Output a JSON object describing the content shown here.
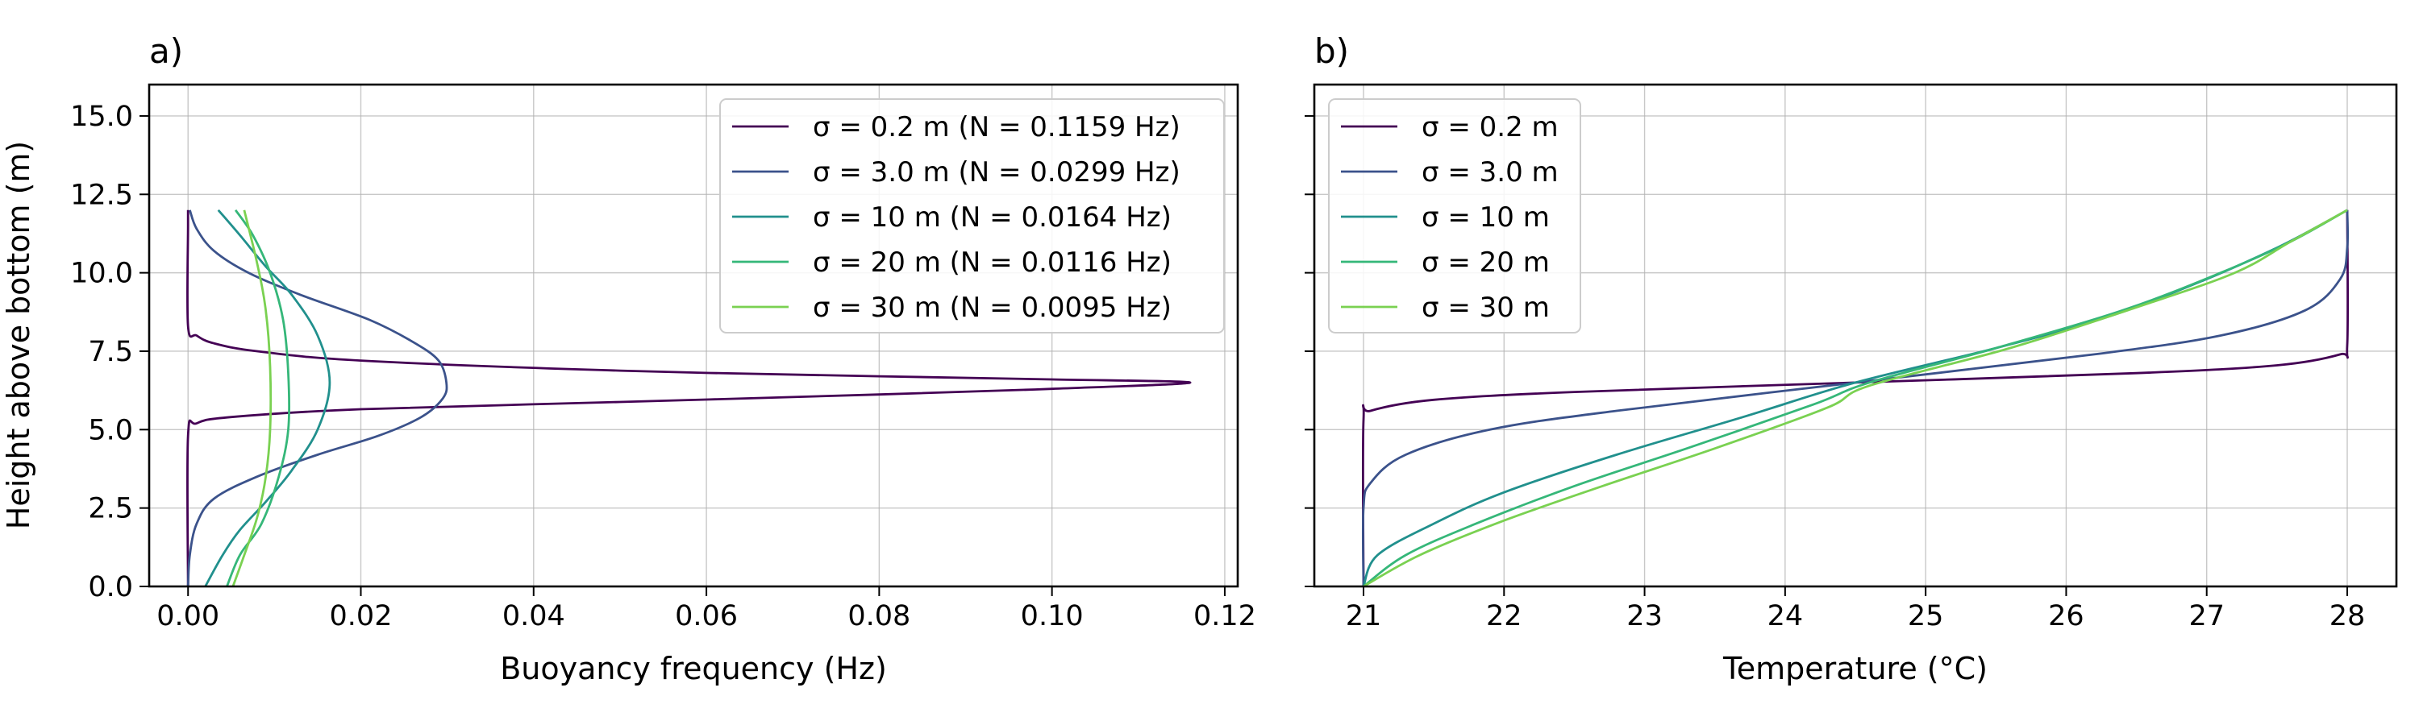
{
  "chart_data": [
    {
      "panel_label": "a)",
      "type": "line",
      "xlabel": "Buoyancy frequency (Hz)",
      "ylabel": "Height above bottom (m)",
      "xlim": [
        -0.0045,
        0.1215
      ],
      "ylim": [
        0,
        16
      ],
      "xticks": [
        0.0,
        0.02,
        0.04,
        0.06,
        0.08,
        0.1,
        0.12
      ],
      "xtick_labels": [
        "0.00",
        "0.02",
        "0.04",
        "0.06",
        "0.08",
        "0.10",
        "0.12"
      ],
      "yticks": [
        0.0,
        2.5,
        5.0,
        7.5,
        10.0,
        12.5,
        15.0
      ],
      "ytick_labels": [
        "0.0",
        "2.5",
        "5.0",
        "7.5",
        "10.0",
        "12.5",
        "15.0"
      ],
      "grid": true,
      "legend_position": "top-right",
      "series": [
        {
          "name": "σ = 0.2 m (N = 0.1159 Hz)",
          "color": "#440154",
          "points": [
            [
              0.0,
              0.0
            ],
            [
              0.0,
              4.8
            ],
            [
              0.001,
              5.2
            ],
            [
              0.005,
              5.4
            ],
            [
              0.02,
              5.65
            ],
            [
              0.05,
              5.88
            ],
            [
              0.08,
              6.12
            ],
            [
              0.1,
              6.3
            ],
            [
              0.116,
              6.5
            ],
            [
              0.1,
              6.6
            ],
            [
              0.08,
              6.7
            ],
            [
              0.05,
              6.88
            ],
            [
              0.02,
              7.2
            ],
            [
              0.008,
              7.5
            ],
            [
              0.003,
              7.75
            ],
            [
              0.001,
              8.0
            ],
            [
              0.0,
              8.3
            ],
            [
              0.0,
              11.5
            ],
            [
              0.0,
              12.0
            ]
          ]
        },
        {
          "name": "σ = 3.0 m (N = 0.0299 Hz)",
          "color": "#3b528b",
          "points": [
            [
              0.0,
              0.0
            ],
            [
              0.0002,
              1.0
            ],
            [
              0.001,
              2.0
            ],
            [
              0.003,
              2.8
            ],
            [
              0.008,
              3.5
            ],
            [
              0.015,
              4.2
            ],
            [
              0.022,
              4.8
            ],
            [
              0.027,
              5.4
            ],
            [
              0.0295,
              6.0
            ],
            [
              0.0299,
              6.5
            ],
            [
              0.029,
              7.2
            ],
            [
              0.026,
              7.8
            ],
            [
              0.021,
              8.5
            ],
            [
              0.013,
              9.3
            ],
            [
              0.007,
              10.0
            ],
            [
              0.003,
              10.7
            ],
            [
              0.001,
              11.4
            ],
            [
              0.0002,
              12.0
            ]
          ]
        },
        {
          "name": "σ = 10 m (N = 0.0164 Hz)",
          "color": "#21908d",
          "points": [
            [
              0.002,
              0.0
            ],
            [
              0.004,
              1.0
            ],
            [
              0.006,
              1.8
            ],
            [
              0.009,
              2.7
            ],
            [
              0.012,
              3.7
            ],
            [
              0.015,
              5.0
            ],
            [
              0.0164,
              6.5
            ],
            [
              0.015,
              8.0
            ],
            [
              0.012,
              9.3
            ],
            [
              0.009,
              10.2
            ],
            [
              0.006,
              11.2
            ],
            [
              0.0035,
              12.0
            ]
          ]
        },
        {
          "name": "σ = 20 m (N = 0.0116 Hz)",
          "color": "#35b779",
          "points": [
            [
              0.0045,
              0.0
            ],
            [
              0.006,
              1.0
            ],
            [
              0.0085,
              2.0
            ],
            [
              0.0105,
              3.5
            ],
            [
              0.0116,
              5.0
            ],
            [
              0.0116,
              6.8
            ],
            [
              0.011,
              8.5
            ],
            [
              0.0095,
              10.0
            ],
            [
              0.0075,
              11.2
            ],
            [
              0.0055,
              12.0
            ]
          ]
        },
        {
          "name": "σ = 30 m (N = 0.0095 Hz)",
          "color": "#7ad151",
          "points": [
            [
              0.0052,
              0.0
            ],
            [
              0.0065,
              1.0
            ],
            [
              0.008,
              2.2
            ],
            [
              0.009,
              3.5
            ],
            [
              0.0095,
              5.0
            ],
            [
              0.0095,
              7.0
            ],
            [
              0.009,
              8.8
            ],
            [
              0.008,
              10.3
            ],
            [
              0.0065,
              12.0
            ]
          ]
        }
      ]
    },
    {
      "panel_label": "b)",
      "type": "line",
      "xlabel": "Temperature (°C)",
      "ylabel": "",
      "xlim": [
        20.65,
        28.35
      ],
      "ylim": [
        0,
        16
      ],
      "xticks": [
        21,
        22,
        23,
        24,
        25,
        26,
        27,
        28
      ],
      "xtick_labels": [
        "21",
        "22",
        "23",
        "24",
        "25",
        "26",
        "27",
        "28"
      ],
      "yticks": [
        0.0,
        2.5,
        5.0,
        7.5,
        10.0,
        12.5,
        15.0
      ],
      "grid": true,
      "legend_position": "top-left",
      "series": [
        {
          "name": "σ = 0.2 m",
          "color": "#440154",
          "points": [
            [
              21.0,
              0.0
            ],
            [
              21.0,
              5.3
            ],
            [
              21.05,
              5.6
            ],
            [
              21.5,
              5.95
            ],
            [
              22.5,
              6.2
            ],
            [
              24.5,
              6.5
            ],
            [
              26.5,
              6.8
            ],
            [
              27.5,
              7.05
            ],
            [
              27.95,
              7.4
            ],
            [
              28.0,
              7.7
            ],
            [
              28.0,
              12.0
            ]
          ]
        },
        {
          "name": "σ = 3.0 m",
          "color": "#3b528b",
          "points": [
            [
              21.0,
              0.0
            ],
            [
              21.0,
              2.5
            ],
            [
              21.05,
              3.3
            ],
            [
              21.3,
              4.2
            ],
            [
              21.9,
              5.0
            ],
            [
              22.8,
              5.6
            ],
            [
              24.5,
              6.5
            ],
            [
              26.2,
              7.4
            ],
            [
              27.1,
              8.0
            ],
            [
              27.7,
              8.8
            ],
            [
              27.95,
              9.8
            ],
            [
              28.0,
              10.8
            ],
            [
              28.0,
              12.0
            ]
          ]
        },
        {
          "name": "σ = 10 m",
          "color": "#21908d",
          "points": [
            [
              21.0,
              0.0
            ],
            [
              21.1,
              1.0
            ],
            [
              21.5,
              2.0
            ],
            [
              22.0,
              3.0
            ],
            [
              22.8,
              4.2
            ],
            [
              23.7,
              5.4
            ],
            [
              24.5,
              6.5
            ],
            [
              25.5,
              7.6
            ],
            [
              26.3,
              8.6
            ],
            [
              27.0,
              9.8
            ],
            [
              27.5,
              10.8
            ],
            [
              27.8,
              11.5
            ],
            [
              28.0,
              12.0
            ]
          ]
        },
        {
          "name": "σ = 20 m",
          "color": "#35b779",
          "points": [
            [
              21.0,
              0.0
            ],
            [
              21.3,
              1.0
            ],
            [
              21.8,
              2.0
            ],
            [
              22.5,
              3.2
            ],
            [
              23.3,
              4.4
            ],
            [
              24.2,
              5.8
            ],
            [
              24.6,
              6.5
            ],
            [
              25.5,
              7.6
            ],
            [
              26.4,
              8.8
            ],
            [
              27.1,
              10.0
            ],
            [
              27.6,
              11.0
            ],
            [
              28.0,
              12.0
            ]
          ]
        },
        {
          "name": "σ = 30 m",
          "color": "#7ad151",
          "points": [
            [
              21.0,
              0.0
            ],
            [
              21.4,
              1.0
            ],
            [
              22.0,
              2.1
            ],
            [
              22.7,
              3.2
            ],
            [
              23.5,
              4.4
            ],
            [
              24.3,
              5.7
            ],
            [
              24.6,
              6.4
            ],
            [
              25.6,
              7.6
            ],
            [
              26.5,
              8.9
            ],
            [
              27.2,
              10.0
            ],
            [
              27.6,
              11.0
            ],
            [
              28.0,
              12.0
            ]
          ]
        }
      ]
    }
  ]
}
